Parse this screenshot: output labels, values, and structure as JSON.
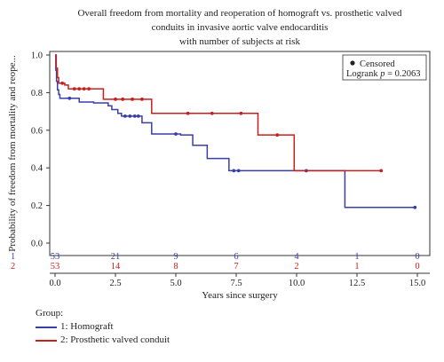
{
  "chart_data": {
    "type": "line",
    "title": [
      "Overall freedom from mortality and reoperation of homograft vs. prosthetic valved",
      "conduits in invasive aortic valve endocarditis",
      "with number of subjects at risk"
    ],
    "xlabel": "Years since surgery",
    "ylabel": "Probability of freedom from mortality and reope...",
    "xlim": [
      0,
      15
    ],
    "ylim": [
      0,
      1
    ],
    "xticks": [
      "0.0",
      "2.5",
      "5.0",
      "7.5",
      "10.0",
      "12.5",
      "15.0"
    ],
    "yticks": [
      "0.0",
      "0.2",
      "0.4",
      "0.6",
      "0.8",
      "1.0"
    ],
    "annotation": {
      "censored_label": "Censored",
      "logrank_prefix": "Logrank ",
      "logrank_p_symbol": "p",
      "logrank_value": " = 0.2063"
    },
    "series": [
      {
        "name": "1: Homograft",
        "risk_id": "1",
        "color": "#3a3fa8",
        "steps": [
          [
            0,
            1.0
          ],
          [
            0.03,
            0.92
          ],
          [
            0.06,
            0.86
          ],
          [
            0.1,
            0.815
          ],
          [
            0.15,
            0.79
          ],
          [
            0.2,
            0.77
          ],
          [
            1.0,
            0.75
          ],
          [
            1.6,
            0.745
          ],
          [
            2.2,
            0.73
          ],
          [
            2.35,
            0.71
          ],
          [
            2.6,
            0.69
          ],
          [
            2.75,
            0.675
          ],
          [
            3.6,
            0.64
          ],
          [
            4.0,
            0.58
          ],
          [
            5.2,
            0.575
          ],
          [
            5.7,
            0.52
          ],
          [
            6.3,
            0.45
          ],
          [
            7.2,
            0.385
          ],
          [
            12.0,
            0.19
          ],
          [
            14.9,
            0.19
          ]
        ],
        "censored": [
          [
            0.6,
            0.77
          ],
          [
            2.9,
            0.675
          ],
          [
            3.1,
            0.675
          ],
          [
            3.3,
            0.675
          ],
          [
            3.45,
            0.675
          ],
          [
            5.0,
            0.58
          ],
          [
            7.4,
            0.385
          ],
          [
            7.6,
            0.385
          ],
          [
            10.4,
            0.385
          ],
          [
            14.9,
            0.19
          ]
        ],
        "at_risk": [
          "53",
          "21",
          "9",
          "6",
          "4",
          "1",
          "0"
        ]
      },
      {
        "name": "2: Prosthetic valved conduit",
        "risk_id": "2",
        "color": "#c8201f",
        "steps": [
          [
            0,
            1.0
          ],
          [
            0.05,
            0.93
          ],
          [
            0.1,
            0.88
          ],
          [
            0.15,
            0.85
          ],
          [
            0.4,
            0.84
          ],
          [
            0.55,
            0.82
          ],
          [
            2.0,
            0.765
          ],
          [
            4.0,
            0.69
          ],
          [
            8.4,
            0.575
          ],
          [
            9.9,
            0.385
          ],
          [
            13.5,
            0.385
          ]
        ],
        "censored": [
          [
            0.3,
            0.85
          ],
          [
            0.8,
            0.82
          ],
          [
            1.0,
            0.82
          ],
          [
            1.2,
            0.82
          ],
          [
            1.4,
            0.82
          ],
          [
            2.5,
            0.765
          ],
          [
            2.8,
            0.765
          ],
          [
            3.2,
            0.765
          ],
          [
            3.6,
            0.765
          ],
          [
            5.5,
            0.69
          ],
          [
            6.5,
            0.69
          ],
          [
            7.7,
            0.69
          ],
          [
            9.2,
            0.575
          ],
          [
            13.5,
            0.385
          ]
        ],
        "at_risk": [
          "53",
          "14",
          "8",
          "7",
          "2",
          "1",
          "0"
        ]
      }
    ]
  },
  "legend": {
    "title": "Group:",
    "items": [
      {
        "label": "1: Homograft",
        "color": "#3a3fa8"
      },
      {
        "label": "2: Prosthetic valved conduit",
        "color": "#c8201f"
      }
    ]
  }
}
